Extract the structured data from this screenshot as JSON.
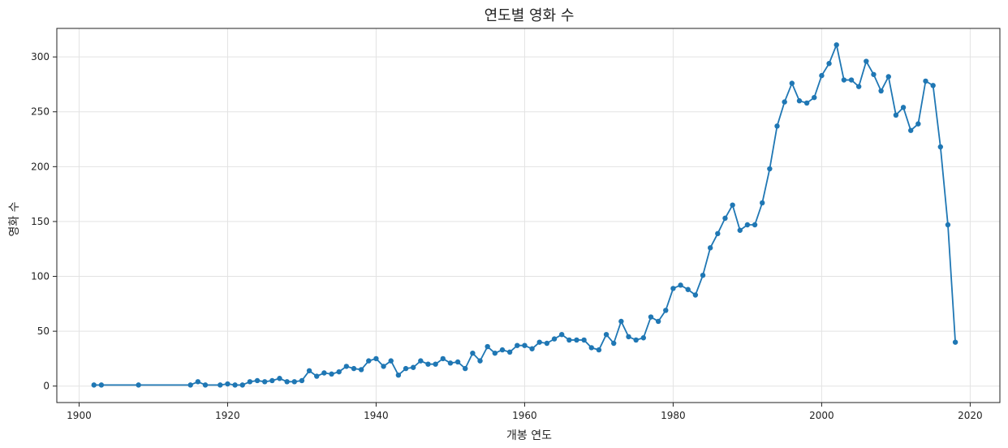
{
  "chart_data": {
    "type": "line",
    "title": "연도별 영화 수",
    "xlabel": "개봉 연도",
    "ylabel": "영화 수",
    "xlim": [
      1897,
      2024
    ],
    "ylim": [
      -15,
      326
    ],
    "xticks": [
      1900,
      1920,
      1940,
      1960,
      1980,
      2000,
      2020
    ],
    "yticks": [
      0,
      50,
      100,
      150,
      200,
      250,
      300
    ],
    "grid": true,
    "color": "#1f77b4",
    "x": [
      1902,
      1903,
      1908,
      1915,
      1916,
      1917,
      1919,
      1920,
      1921,
      1922,
      1923,
      1924,
      1925,
      1926,
      1927,
      1928,
      1929,
      1930,
      1931,
      1932,
      1933,
      1934,
      1935,
      1936,
      1937,
      1938,
      1939,
      1940,
      1941,
      1942,
      1943,
      1944,
      1945,
      1946,
      1947,
      1948,
      1949,
      1950,
      1951,
      1952,
      1953,
      1954,
      1955,
      1956,
      1957,
      1958,
      1959,
      1960,
      1961,
      1962,
      1963,
      1964,
      1965,
      1966,
      1967,
      1968,
      1969,
      1970,
      1971,
      1972,
      1973,
      1974,
      1975,
      1976,
      1977,
      1978,
      1979,
      1980,
      1981,
      1982,
      1983,
      1984,
      1985,
      1986,
      1987,
      1988,
      1989,
      1990,
      1991,
      1992,
      1993,
      1994,
      1995,
      1996,
      1997,
      1998,
      1999,
      2000,
      2001,
      2002,
      2003,
      2004,
      2005,
      2006,
      2007,
      2008,
      2009,
      2010,
      2011,
      2012,
      2013,
      2014,
      2015,
      2016,
      2017,
      2018
    ],
    "y": [
      1,
      1,
      1,
      1,
      4,
      1,
      1,
      2,
      1,
      1,
      4,
      5,
      4,
      5,
      7,
      4,
      4,
      5,
      14,
      9,
      12,
      11,
      13,
      18,
      16,
      15,
      23,
      25,
      18,
      23,
      10,
      16,
      17,
      23,
      20,
      20,
      25,
      21,
      22,
      16,
      30,
      23,
      36,
      30,
      33,
      31,
      37,
      37,
      34,
      40,
      39,
      43,
      47,
      42,
      42,
      42,
      35,
      33,
      47,
      39,
      59,
      45,
      42,
      44,
      63,
      59,
      69,
      89,
      92,
      88,
      83,
      101,
      126,
      139,
      153,
      165,
      142,
      147,
      147,
      167,
      198,
      237,
      259,
      276,
      260,
      258,
      263,
      283,
      294,
      311,
      279,
      279,
      273,
      296,
      284,
      269,
      282,
      247,
      254,
      233,
      239,
      278,
      274,
      218,
      147,
      40
    ]
  }
}
